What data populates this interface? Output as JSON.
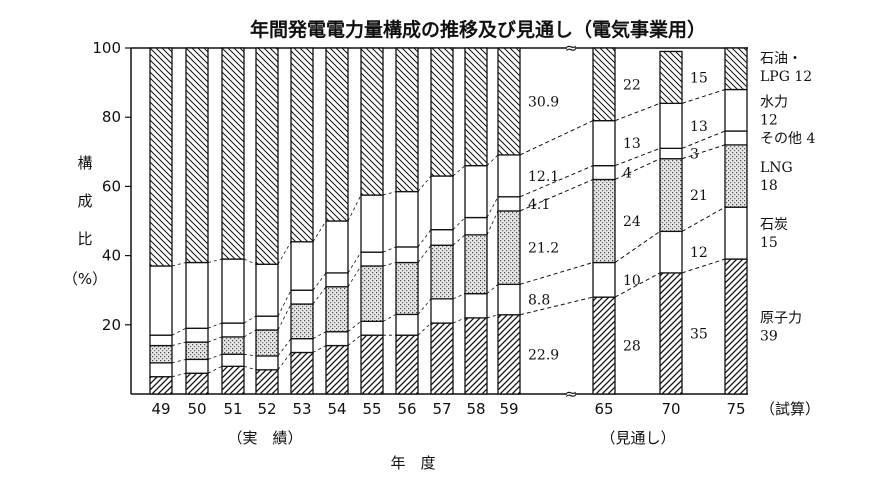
{
  "chart_data": {
    "type": "bar",
    "stacked": true,
    "title": "年間発電電力量構成の推移及び見通し（電気事業用）",
    "ylabel": "構成比（%）",
    "xlabel": "年　度",
    "ylim": [
      0,
      100
    ],
    "yticks": [
      "20",
      "40",
      "60",
      "80",
      "100"
    ],
    "grid": false,
    "legend": "right",
    "categories": [
      "49",
      "50",
      "51",
      "52",
      "53",
      "54",
      "55",
      "56",
      "57",
      "58",
      "59",
      "65",
      "70",
      "75"
    ],
    "group_labels": [
      {
        "text": "（実　績）",
        "categories": [
          "49",
          "59"
        ]
      },
      {
        "text": "（見通し）",
        "categories": [
          "65",
          "70"
        ]
      }
    ],
    "suffix_75": "（試算）",
    "series": [
      {
        "name": "原子力",
        "legend_value": "39",
        "pattern": "hatch-forward",
        "values": [
          5,
          6,
          8,
          7,
          12,
          14,
          17,
          17,
          20.5,
          22,
          22.9,
          28,
          35,
          39
        ],
        "labels": [
          "",
          "",
          "",
          "",
          "",
          "",
          "",
          "",
          "",
          "",
          "22.9",
          "28",
          "35",
          ""
        ]
      },
      {
        "name": "石炭",
        "legend_value": "15",
        "pattern": "white",
        "values": [
          4,
          4,
          3.5,
          4,
          4,
          4,
          4,
          6,
          7,
          7,
          8.8,
          10,
          12,
          15
        ],
        "labels": [
          "",
          "",
          "",
          "",
          "",
          "",
          "",
          "",
          "",
          "",
          "8.8",
          "10",
          "12",
          ""
        ]
      },
      {
        "name": "LNG",
        "legend_value": "18",
        "pattern": "dots",
        "values": [
          5,
          5,
          5,
          7.5,
          10,
          13,
          16,
          15,
          15.5,
          17,
          21.2,
          24,
          21,
          18
        ],
        "labels": [
          "",
          "",
          "",
          "",
          "",
          "",
          "",
          "",
          "",
          "",
          "21.2",
          "24",
          "21",
          ""
        ]
      },
      {
        "name": "その他",
        "legend_value": "4",
        "pattern": "white",
        "values": [
          3,
          4,
          4,
          4,
          4,
          4,
          4,
          4.5,
          4.5,
          5,
          4.1,
          4,
          3,
          4
        ],
        "labels": [
          "",
          "",
          "",
          "",
          "",
          "",
          "",
          "",
          "",
          "",
          "4.1",
          "4",
          "3",
          ""
        ]
      },
      {
        "name": "水力",
        "legend_value": "12",
        "pattern": "white",
        "values": [
          20,
          19,
          18.5,
          15,
          14,
          15,
          16.5,
          16,
          15.5,
          15,
          12.1,
          13,
          13,
          12
        ],
        "labels": [
          "",
          "",
          "",
          "",
          "",
          "",
          "",
          "",
          "",
          "",
          "12.1",
          "13",
          "13",
          ""
        ]
      },
      {
        "name": "石油・LPG",
        "legend_value": "12",
        "pattern": "hatch-back",
        "values": [
          63,
          62,
          61,
          62.5,
          56,
          50,
          42.5,
          41.5,
          37,
          34,
          30.9,
          22,
          15,
          12
        ],
        "labels": [
          "",
          "",
          "",
          "",
          "",
          "",
          "",
          "",
          "",
          "",
          "30.9",
          "22",
          "15",
          ""
        ]
      }
    ]
  }
}
